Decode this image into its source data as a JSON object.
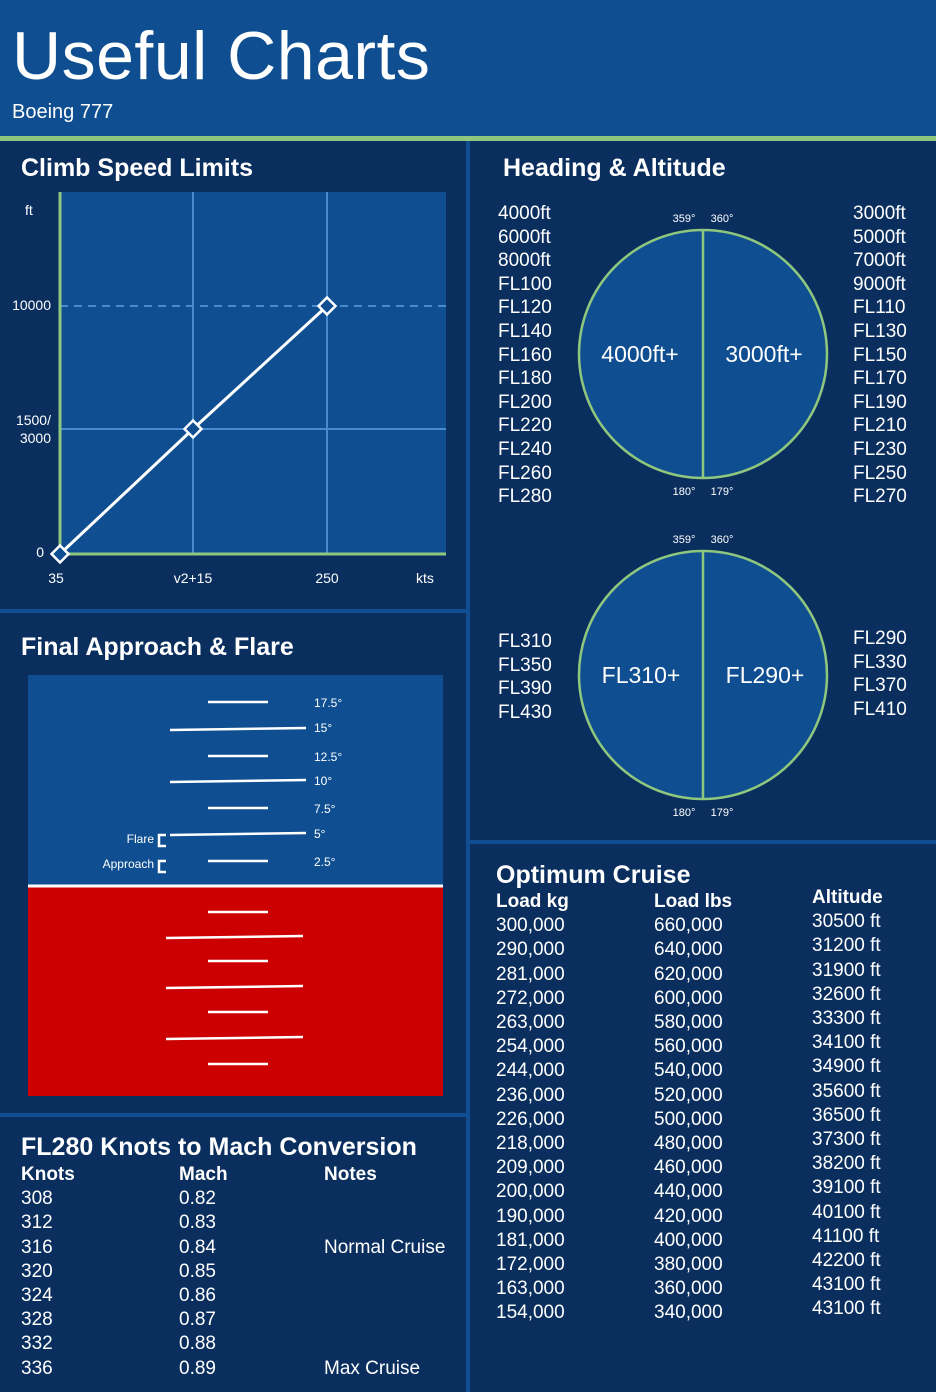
{
  "header": {
    "title": "Useful Charts",
    "subtitle": "Boeing 777"
  },
  "climb": {
    "title": "Climb Speed Limits",
    "y_unit": "ft",
    "y_ticks": [
      {
        "lines": [
          "10000"
        ]
      },
      {
        "lines": [
          "1500/",
          "3000"
        ]
      },
      {
        "lines": [
          "0"
        ]
      }
    ],
    "x_ticks": [
      "35",
      "v2+15",
      "250"
    ],
    "x_unit": "kts"
  },
  "chart_data": {
    "type": "line",
    "x": [
      "35",
      "v2+15",
      "250"
    ],
    "series": [
      {
        "values": [
          "0",
          "1500/3000",
          "10000"
        ]
      }
    ],
    "xlabel": "kts",
    "ylabel": "ft"
  },
  "heading": {
    "title": "Heading & Altitude",
    "circle1": {
      "left_label": "4000ft+",
      "right_label": "3000ft+",
      "top_left": "359°",
      "top_right": "360°",
      "bottom_left": "180°",
      "bottom_right": "179°",
      "left_alts": [
        "4000ft",
        "6000ft",
        "8000ft",
        "FL100",
        "FL120",
        "FL140",
        "FL160",
        "FL180",
        "FL200",
        "FL220",
        "FL240",
        "FL260",
        "FL280"
      ],
      "right_alts": [
        "3000ft",
        "5000ft",
        "7000ft",
        "9000ft",
        "FL110",
        "FL130",
        "FL150",
        "FL170",
        "FL190",
        "FL210",
        "FL230",
        "FL250",
        "FL270"
      ]
    },
    "circle2": {
      "left_label": "FL310+",
      "right_label": "FL290+",
      "top_left": "359°",
      "top_right": "360°",
      "bottom_left": "180°",
      "bottom_right": "179°",
      "left_alts": [
        "FL310",
        "FL350",
        "FL390",
        "FL430"
      ],
      "right_alts": [
        "FL290",
        "FL330",
        "FL370",
        "FL410"
      ]
    }
  },
  "approach": {
    "title": "Final Approach & Flare",
    "pitch_labels": [
      "17.5°",
      "15°",
      "12.5°",
      "10°",
      "7.5°",
      "5°",
      "2.5°"
    ],
    "flare_label": "Flare",
    "approach_label": "Approach"
  },
  "cruise": {
    "title": "Optimum Cruise",
    "headers": [
      "Load kg",
      "Load lbs",
      "Altitude"
    ],
    "kg": [
      "300,000",
      "290,000",
      "281,000",
      "272,000",
      "263,000",
      "254,000",
      "244,000",
      "236,000",
      "226,000",
      "218,000",
      "209,000",
      "200,000",
      "190,000",
      "181,000",
      "172,000",
      "163,000",
      "154,000"
    ],
    "lbs": [
      "660,000",
      "640,000",
      "620,000",
      "600,000",
      "580,000",
      "560,000",
      "540,000",
      "520,000",
      "500,000",
      "480,000",
      "460,000",
      "440,000",
      "420,000",
      "400,000",
      "380,000",
      "360,000",
      "340,000"
    ],
    "alt": [
      "30500 ft",
      "31200 ft",
      "31900 ft",
      "32600 ft",
      "33300 ft",
      "34100 ft",
      "34900 ft",
      "35600 ft",
      "36500 ft",
      "37300 ft",
      "38200 ft",
      "39100 ft",
      "40100 ft",
      "41100 ft",
      "42200 ft",
      "43100 ft",
      "43100 ft"
    ]
  },
  "mach": {
    "title": "FL280 Knots to Mach Conversion",
    "headers": [
      "Knots",
      "Mach",
      "Notes"
    ],
    "knots": [
      "308",
      "312",
      "316",
      "320",
      "324",
      "328",
      "332",
      "336"
    ],
    "mach": [
      "0.82",
      "0.83",
      "0.84",
      "0.85",
      "0.86",
      "0.87",
      "0.88",
      "0.89"
    ],
    "notes": [
      "",
      "",
      "Normal Cruise",
      "",
      "",
      "",
      "",
      "Max Cruise"
    ]
  },
  "colors": {
    "background": "#0a2f5e",
    "panel_blue": "#0f4f91",
    "accent_green": "#8fc77e",
    "ground_red": "#cc0000"
  }
}
